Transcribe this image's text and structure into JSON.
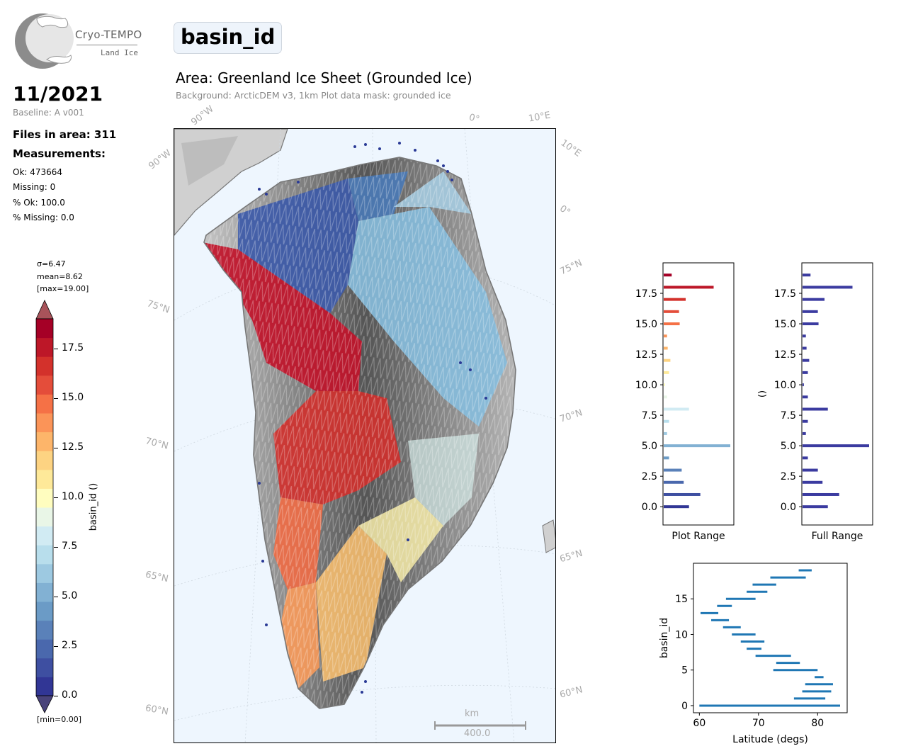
{
  "logo": {
    "title": "Cryo-TEMPO",
    "subtitle": "Land Ice"
  },
  "header": {
    "date": "11/2021",
    "baseline": "Baseline: A v001",
    "variable": "basin_id",
    "area": "Area: Greenland Ice Sheet (Grounded Ice)",
    "background": "Background: ArcticDEM v3, 1km   Plot data mask: grounded ice"
  },
  "stats": {
    "files": "Files in area: 311",
    "measurements_title": "Measurements:",
    "ok": "Ok: 473664",
    "missing": "Missing: 0",
    "pct_ok": "% Ok: 100.0",
    "pct_missing": "% Missing: 0.0"
  },
  "colorbar": {
    "sigma": "σ=6.47",
    "mean": "mean=8.62",
    "max": "[max=19.00]",
    "min": "[min=0.00]",
    "label": "basin_id ()",
    "ticks": [
      "0.0",
      "2.5",
      "5.0",
      "7.5",
      "10.0",
      "12.5",
      "15.0",
      "17.5"
    ],
    "colors": [
      "#313695",
      "#3e4fa1",
      "#4a68ad",
      "#5a81b9",
      "#6b9bc6",
      "#82b1d3",
      "#9dc9e1",
      "#b8deec",
      "#d1ebf3",
      "#e9f6e7",
      "#fffdbf",
      "#fee999",
      "#fdd382",
      "#fdb56a",
      "#fb9458",
      "#f57146",
      "#e44d3a",
      "#d3312b",
      "#bd1728",
      "#a50026"
    ],
    "under_color": "#49437a",
    "over_color": "#a8535a"
  },
  "map": {
    "graticule_labels": {
      "top": [
        "90°W",
        "0°",
        "10°E"
      ],
      "left": [
        "90°W",
        "75°N",
        "70°N",
        "65°N",
        "60°N"
      ],
      "right": [
        "10°E",
        "0°",
        "75°N",
        "70°N",
        "65°N",
        "60°N"
      ]
    },
    "scale_unit": "km",
    "scale_value": "400.0"
  },
  "chart_data": [
    {
      "type": "bar",
      "orientation": "horizontal",
      "xlabel": "Plot Range",
      "ylabel": "",
      "ylim": [
        -1.5,
        20
      ],
      "yticks": [
        0.0,
        2.5,
        5.0,
        7.5,
        10.0,
        12.5,
        15.0,
        17.5
      ],
      "categories": [
        0,
        1,
        2,
        3,
        4,
        5,
        6,
        7,
        8,
        9,
        10,
        11,
        12,
        13,
        14,
        15,
        16,
        17,
        18,
        19
      ],
      "values": [
        0.38,
        0.55,
        0.3,
        0.27,
        0.08,
        1.0,
        0.05,
        0.08,
        0.38,
        0.05,
        0.02,
        0.08,
        0.1,
        0.06,
        0.05,
        0.24,
        0.23,
        0.33,
        0.75,
        0.12
      ]
    },
    {
      "type": "bar",
      "orientation": "horizontal",
      "xlabel": "Full Range",
      "ylabel": "()",
      "ylim": [
        -1.5,
        20
      ],
      "yticks": [
        0.0,
        2.5,
        5.0,
        7.5,
        10.0,
        12.5,
        15.0,
        17.5
      ],
      "color": "#3b3ba0",
      "categories": [
        0,
        1,
        2,
        3,
        4,
        5,
        6,
        7,
        8,
        9,
        10,
        11,
        12,
        13,
        14,
        15,
        16,
        17,
        18,
        19
      ],
      "values": [
        0.38,
        0.55,
        0.3,
        0.23,
        0.08,
        1.0,
        0.05,
        0.08,
        0.38,
        0.08,
        0.02,
        0.08,
        0.1,
        0.06,
        0.05,
        0.24,
        0.23,
        0.33,
        0.75,
        0.12
      ]
    },
    {
      "type": "range",
      "xlabel": "Latitude (degs)",
      "ylabel": "basin_id",
      "xlim": [
        59,
        85
      ],
      "ylim": [
        -1,
        20
      ],
      "xticks": [
        60,
        70,
        80
      ],
      "yticks": [
        0,
        5,
        10,
        15
      ],
      "color": "#1f77b4",
      "ranges": [
        {
          "id": 0,
          "min": 60.0,
          "max": 83.8
        },
        {
          "id": 1,
          "min": 76.0,
          "max": 81.3
        },
        {
          "id": 2,
          "min": 77.4,
          "max": 82.3
        },
        {
          "id": 3,
          "min": 77.9,
          "max": 82.6
        },
        {
          "id": 4,
          "min": 79.5,
          "max": 81.0
        },
        {
          "id": 5,
          "min": 72.5,
          "max": 80.0
        },
        {
          "id": 6,
          "min": 73.0,
          "max": 77.0
        },
        {
          "id": 7,
          "min": 69.5,
          "max": 75.5
        },
        {
          "id": 8,
          "min": 68.0,
          "max": 70.5
        },
        {
          "id": 9,
          "min": 67.0,
          "max": 71.0
        },
        {
          "id": 10,
          "min": 65.5,
          "max": 69.5
        },
        {
          "id": 11,
          "min": 64.0,
          "max": 67.0
        },
        {
          "id": 12,
          "min": 62.0,
          "max": 65.0
        },
        {
          "id": 13,
          "min": 60.2,
          "max": 63.2
        },
        {
          "id": 14,
          "min": 63.0,
          "max": 65.5
        },
        {
          "id": 15,
          "min": 64.5,
          "max": 69.5
        },
        {
          "id": 16,
          "min": 68.0,
          "max": 71.5
        },
        {
          "id": 17,
          "min": 69.0,
          "max": 73.0
        },
        {
          "id": 18,
          "min": 72.0,
          "max": 78.0
        },
        {
          "id": 19,
          "min": 76.8,
          "max": 79.0
        }
      ]
    }
  ]
}
